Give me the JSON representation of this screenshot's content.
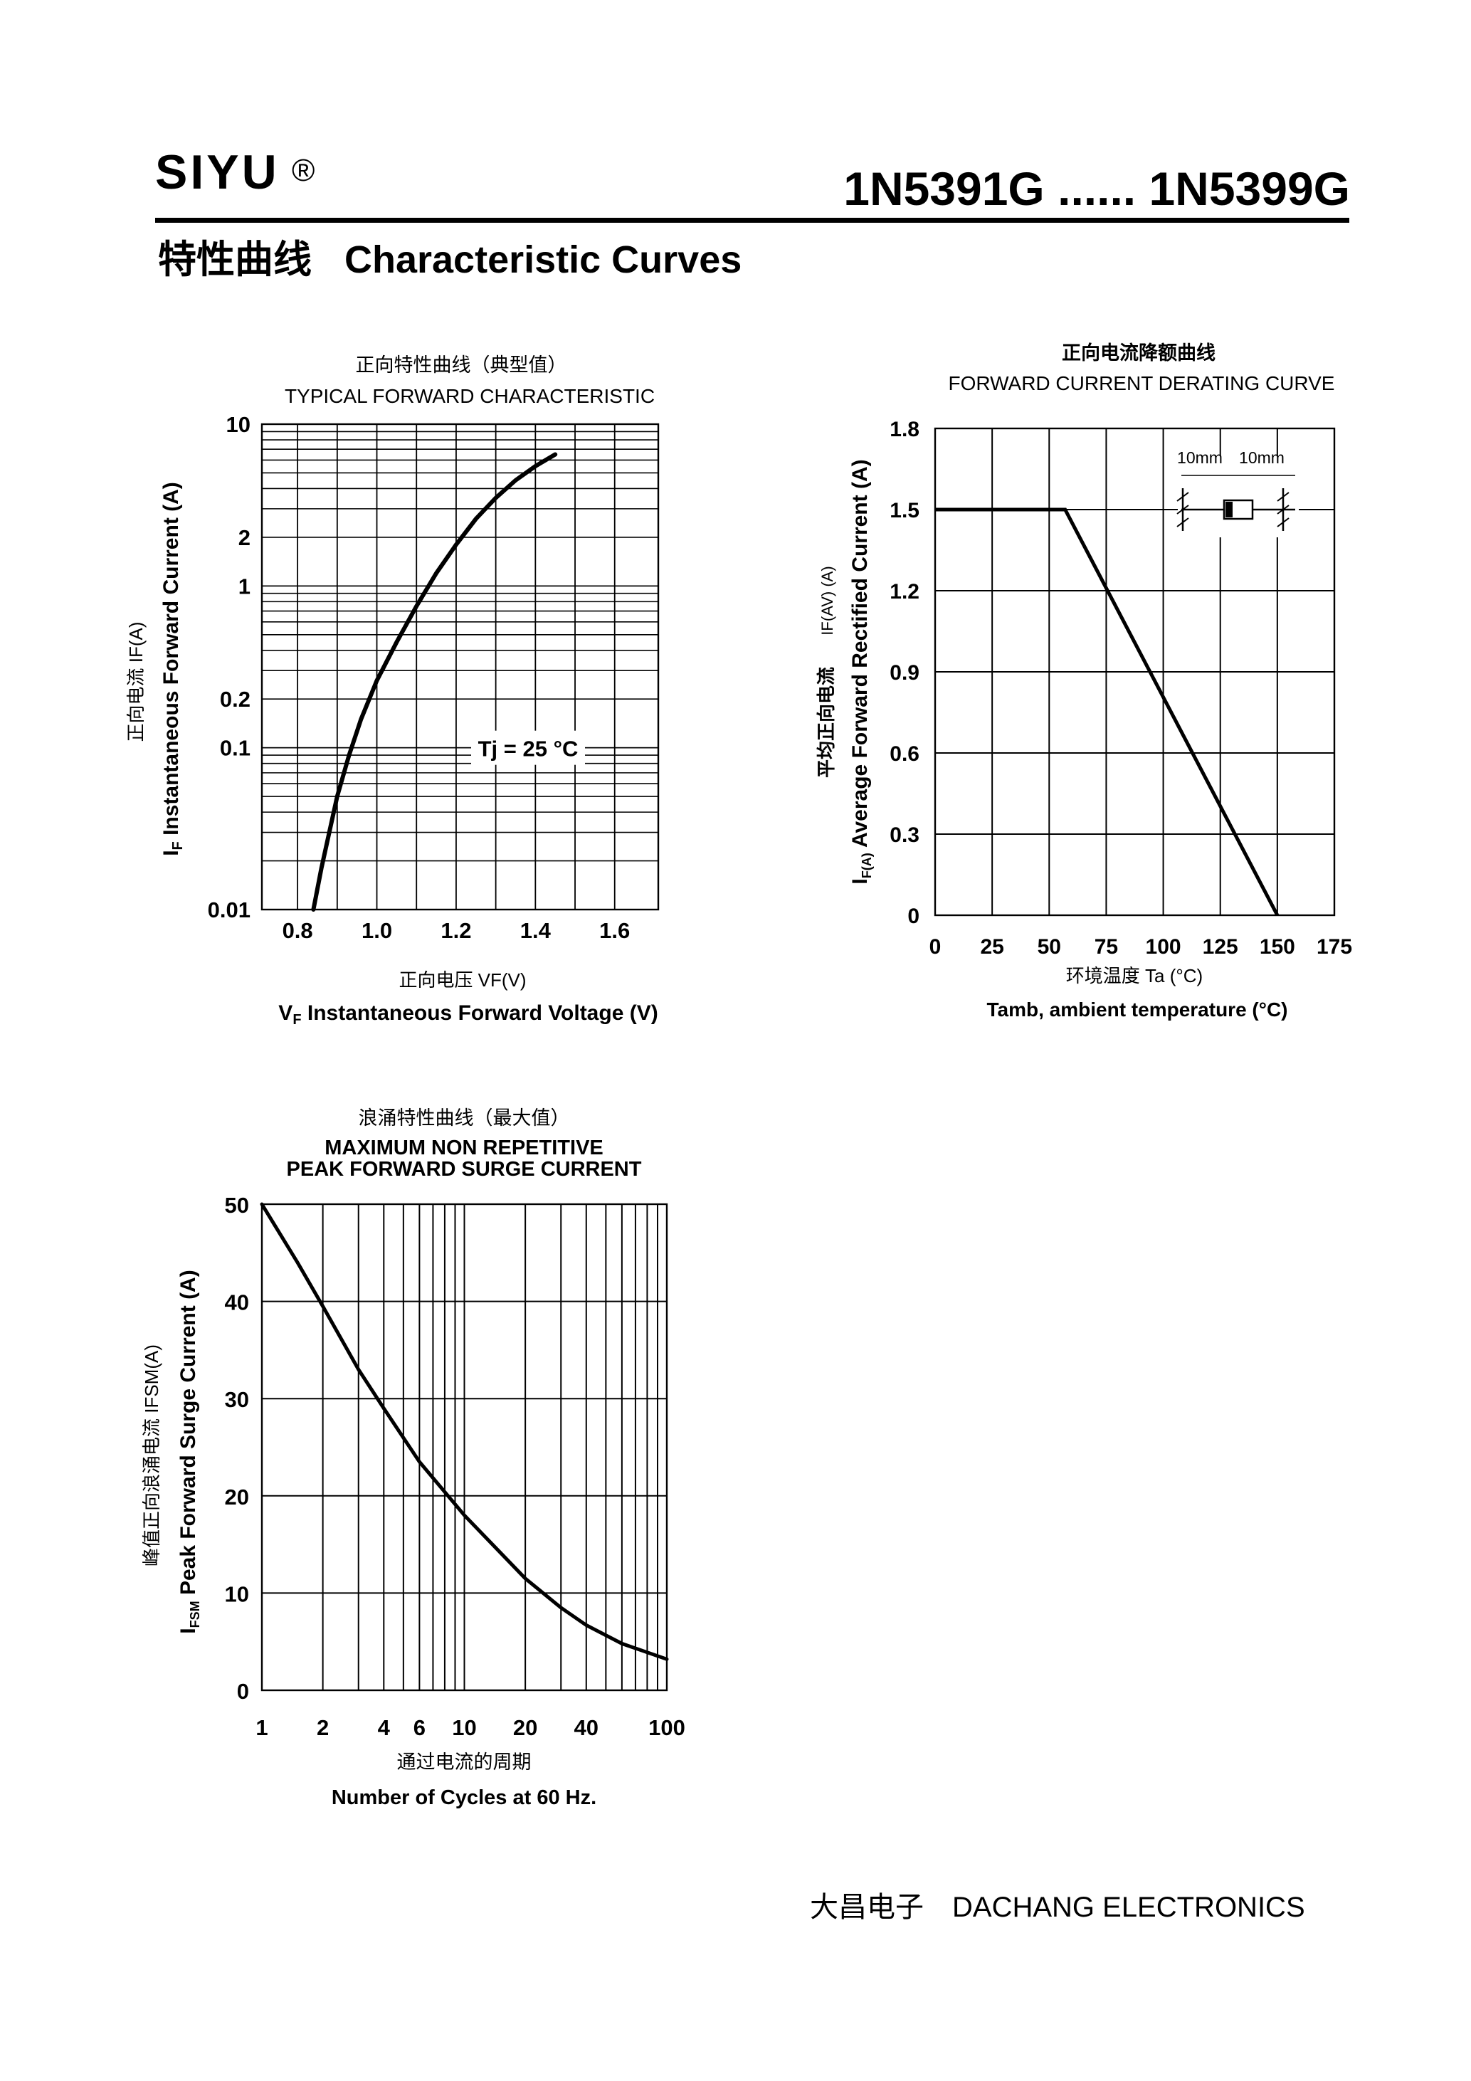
{
  "header": {
    "brand": "SIYU",
    "registered": "®",
    "part_range": "1N5391G ...... 1N5399G",
    "section_title_zh": "特性曲线",
    "section_title_en": "Characteristic Curves"
  },
  "footer": {
    "company_zh": "大昌电子",
    "company_en": "DACHANG ELECTRONICS"
  },
  "chart_data": [
    {
      "type": "line",
      "title_zh": "正向特性曲线（典型值）",
      "title": "TYPICAL FORWARD CHARACTERISTIC",
      "xlabel_zh": "正向电压",
      "xlabel_sym": "VF(V)",
      "xlabel_sub": "F",
      "xlabel": "Instantaneous Forward Voltage (V)",
      "xlabel_main": "V",
      "ylabel_zh": "正向电流",
      "ylabel_sym": "IF(A)",
      "ylabel_main": "I",
      "ylabel_sub": "F",
      "ylabel": "Instantaneous Forward Current (A)",
      "yscale": "log",
      "xlim": [
        0.71,
        1.71
      ],
      "ylim": [
        0.01,
        10
      ],
      "xticks": [
        "0.8",
        "1.0",
        "1.2",
        "1.4",
        "1.6"
      ],
      "yticks": [
        "10",
        "2",
        "1",
        "0.2",
        "0.1",
        "0.01"
      ],
      "annotation": "Tj = 25 °C",
      "series": [
        {
          "name": "Tj = 25 °C",
          "x": [
            0.84,
            0.86,
            0.88,
            0.9,
            0.93,
            0.96,
            1.0,
            1.05,
            1.1,
            1.15,
            1.2,
            1.25,
            1.3,
            1.35,
            1.4,
            1.45
          ],
          "y": [
            0.01,
            0.018,
            0.03,
            0.05,
            0.09,
            0.15,
            0.26,
            0.45,
            0.75,
            1.2,
            1.8,
            2.6,
            3.5,
            4.5,
            5.5,
            6.5
          ]
        }
      ]
    },
    {
      "type": "line",
      "title_zh": "正向电流降额曲线",
      "title": "FORWARD CURRENT DERATING CURVE",
      "xlabel_zh": "环境温度",
      "xlabel_sym": "Ta (°C)",
      "xlabel": "Tamb, ambient temperature (°C)",
      "ylabel_zh": "平均正向电流",
      "ylabel_sym": "IF(AV)",
      "ylabel_unit": "(A)",
      "ylabel_main": "I",
      "ylabel_sub": "F(A)",
      "ylabel": "Average Forward Rectified Current (A)",
      "xlim": [
        0,
        175
      ],
      "ylim": [
        0,
        1.8
      ],
      "xticks": [
        "0",
        "25",
        "50",
        "75",
        "100",
        "125",
        "150",
        "175"
      ],
      "yticks": [
        "1.8",
        "1.5",
        "1.2",
        "0.9",
        "0.6",
        "0.3",
        "0"
      ],
      "inset_labels": [
        "10mm",
        "10mm"
      ],
      "series": [
        {
          "name": "IF(AV)",
          "x": [
            0,
            57,
            150
          ],
          "y": [
            1.5,
            1.5,
            0
          ]
        }
      ]
    },
    {
      "type": "line",
      "title_zh": "浪涌特性曲线（最大值）",
      "title_line1": "MAXIMUM NON REPETITIVE",
      "title_line2": "PEAK FORWARD SURGE CURRENT",
      "xlabel_zh": "通过电流的周期",
      "xlabel": "Number  of  Cycles at 60 Hz.",
      "ylabel_zh": "峰值正向浪涌电流",
      "ylabel_sym": "IFSM(A)",
      "ylabel_main": "I",
      "ylabel_sub": "FSM",
      "ylabel": "Peak Forward Surge Current (A)",
      "xscale": "log",
      "xlim": [
        1,
        100
      ],
      "ylim": [
        0,
        50
      ],
      "xticks": [
        "1",
        "2",
        "4",
        "6",
        "10",
        "20",
        "40",
        "100"
      ],
      "yticks": [
        "50",
        "40",
        "30",
        "20",
        "10",
        "0"
      ],
      "series": [
        {
          "name": "IFSM",
          "x": [
            1,
            1.5,
            2,
            3,
            4,
            6,
            10,
            20,
            30,
            40,
            60,
            100
          ],
          "y": [
            50,
            44,
            39.5,
            33,
            29,
            23.5,
            18,
            11.5,
            8.5,
            6.7,
            4.8,
            3.2
          ]
        }
      ]
    }
  ]
}
